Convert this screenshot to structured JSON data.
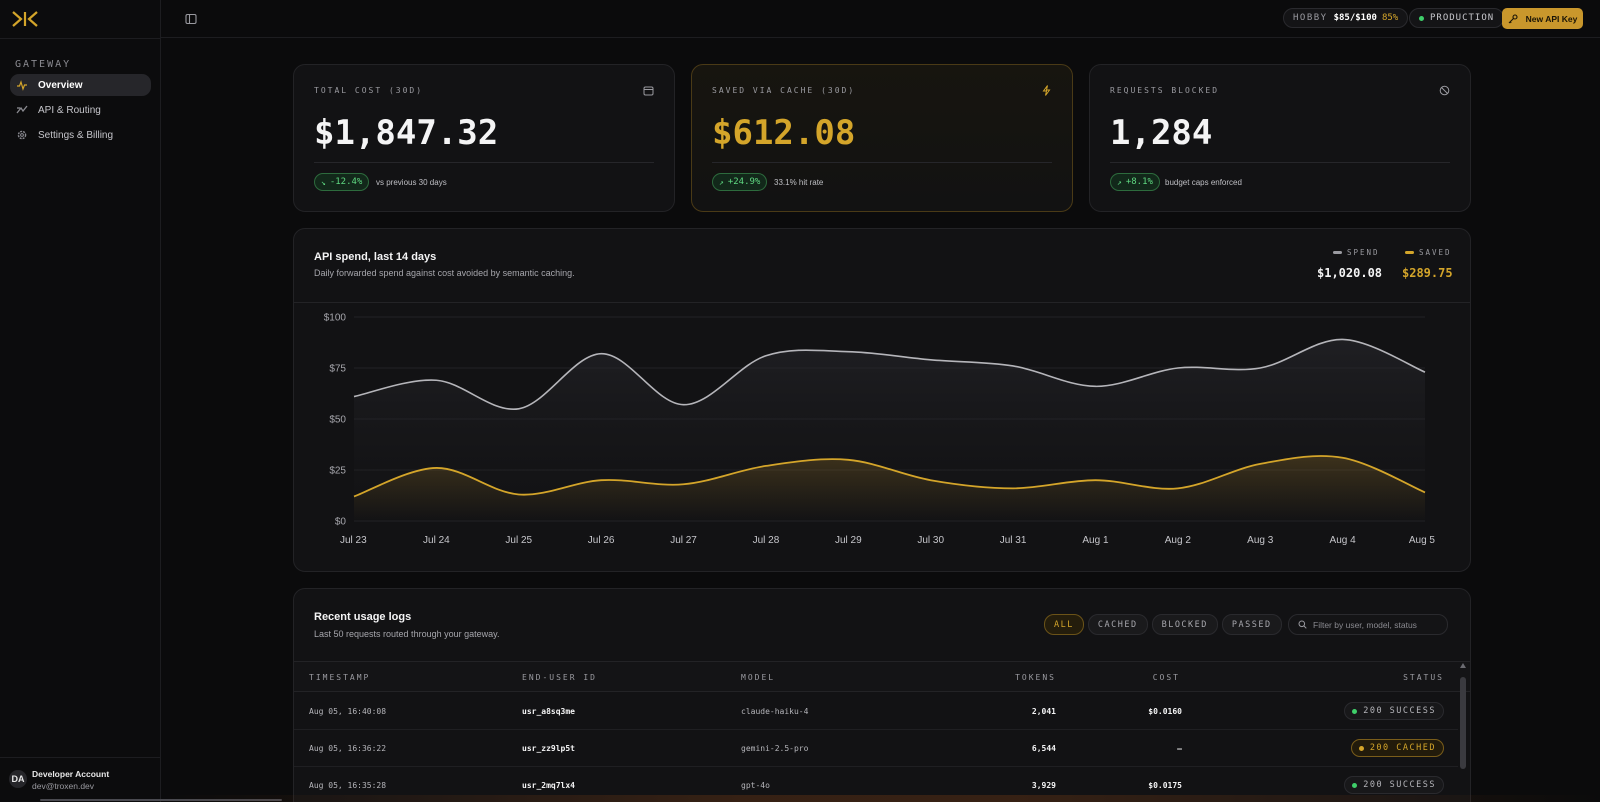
{
  "sidebar": {
    "heading": "GATEWAY",
    "items": [
      {
        "label": "Overview",
        "icon": "activity-icon",
        "active": true
      },
      {
        "label": "API & Routing",
        "icon": "routing-icon",
        "active": false
      },
      {
        "label": "Settings & Billing",
        "icon": "gear-icon",
        "active": false
      }
    ],
    "account": {
      "initials": "DA",
      "name": "Developer Account",
      "email": "dev@troxen.dev"
    }
  },
  "topbar": {
    "plan_label": "HOBBY",
    "plan_amount": "$85/$100",
    "plan_percent": "85%",
    "environment": "PRODUCTION",
    "new_key_label": "New API Key"
  },
  "stats": [
    {
      "label": "TOTAL COST (30D)",
      "value": "$1,847.32",
      "change": "-12.4%",
      "note": "vs previous 30 days",
      "icon": "calendar-icon"
    },
    {
      "label": "SAVED VIA CACHE (30D)",
      "value": "$612.08",
      "change": "+24.9%",
      "note": "33.1% hit rate",
      "icon": "bolt-icon"
    },
    {
      "label": "REQUESTS BLOCKED",
      "value": "1,284",
      "change": "+8.1%",
      "note": "budget caps enforced",
      "icon": "blocked-icon"
    }
  ],
  "chart": {
    "title": "API spend, last 14 days",
    "subtitle": "Daily forwarded spend against cost avoided by semantic caching.",
    "legend": [
      {
        "name": "SPEND",
        "total": "$1,020.08",
        "color": "#9a9aa0"
      },
      {
        "name": "SAVED",
        "total": "$289.75",
        "color": "#d4a52a"
      }
    ]
  },
  "chart_data": {
    "type": "area",
    "categories": [
      "Jul 23",
      "Jul 24",
      "Jul 25",
      "Jul 26",
      "Jul 27",
      "Jul 28",
      "Jul 29",
      "Jul 30",
      "Jul 31",
      "Aug 1",
      "Aug 2",
      "Aug 3",
      "Aug 4",
      "Aug 5"
    ],
    "series": [
      {
        "name": "SPEND",
        "values": [
          61,
          69,
          55,
          82,
          57,
          81,
          83,
          79,
          76,
          66,
          75,
          75,
          89,
          73
        ]
      },
      {
        "name": "SAVED",
        "values": [
          12,
          26,
          13,
          20,
          18,
          27,
          30,
          20,
          16,
          20,
          16,
          28,
          31,
          14
        ]
      }
    ],
    "y_ticks": [
      "$0",
      "$25",
      "$50",
      "$75",
      "$100"
    ],
    "ylim": [
      0,
      100
    ],
    "grid": true,
    "legend_position": "top-right"
  },
  "logs": {
    "title": "Recent usage logs",
    "subtitle": "Last 50 requests routed through your gateway.",
    "filters": [
      "ALL",
      "CACHED",
      "BLOCKED",
      "PASSED"
    ],
    "active_filter": "ALL",
    "search_placeholder": "Filter by user, model, status",
    "columns": [
      "TIMESTAMP",
      "END-USER ID",
      "MODEL",
      "TOKENS",
      "COST",
      "STATUS"
    ],
    "rows": [
      {
        "timestamp": "Aug 05, 16:40:08",
        "user": "usr_a8sq3me",
        "model": "claude-haiku-4",
        "tokens": "2,041",
        "cost": "$0.0160",
        "status": "200 SUCCESS",
        "kind": "success"
      },
      {
        "timestamp": "Aug 05, 16:36:22",
        "user": "usr_zz9lp5t",
        "model": "gemini-2.5-pro",
        "tokens": "6,544",
        "cost": "—",
        "status": "200 CACHED",
        "kind": "cached"
      },
      {
        "timestamp": "Aug 05, 16:35:28",
        "user": "usr_2mq7lx4",
        "model": "gpt-4o",
        "tokens": "3,929",
        "cost": "$0.0175",
        "status": "200 SUCCESS",
        "kind": "success"
      }
    ]
  }
}
